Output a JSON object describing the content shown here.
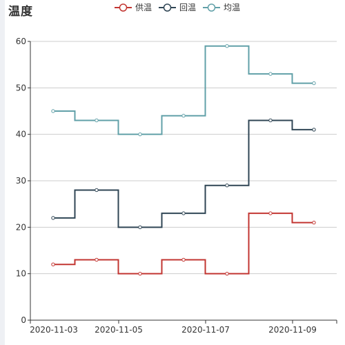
{
  "chart_data": {
    "type": "line",
    "step": true,
    "title": "温度",
    "xlabel": "",
    "ylabel": "",
    "x": [
      "2020-11-03",
      "2020-11-04",
      "2020-11-05",
      "2020-11-06",
      "2020-11-07",
      "2020-11-08",
      "2020-11-09"
    ],
    "x_tick_labels": [
      "2020-11-03",
      "2020-11-05",
      "2020-11-07",
      "2020-11-09"
    ],
    "ylim": [
      0,
      60
    ],
    "y_ticks": [
      0,
      10,
      20,
      30,
      40,
      50,
      60
    ],
    "grid": true,
    "legend": "top-center",
    "series": [
      {
        "name": "供温",
        "color": "#c23531",
        "values": [
          12,
          13,
          10,
          13,
          10,
          23,
          21
        ]
      },
      {
        "name": "回温",
        "color": "#2f4554",
        "values": [
          22,
          28,
          20,
          23,
          29,
          43,
          41
        ]
      },
      {
        "name": "均温",
        "color": "#61a0a8",
        "values": [
          45,
          43,
          40,
          44,
          59,
          53,
          51
        ]
      }
    ]
  }
}
